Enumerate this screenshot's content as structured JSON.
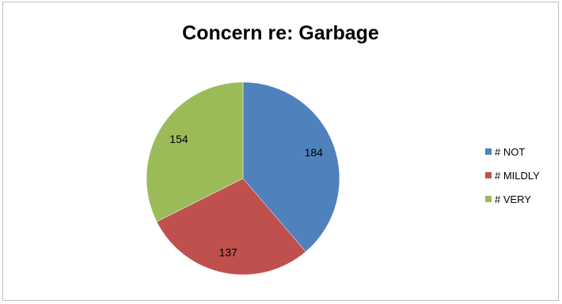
{
  "chart_data": {
    "type": "pie",
    "title": "Concern re: Garbage",
    "legend_position": "right",
    "slices": [
      {
        "label": "# NOT",
        "value": 184,
        "color": "#4f81bd"
      },
      {
        "label": "# MILDLY",
        "value": 137,
        "color": "#c0504d"
      },
      {
        "label": "# VERY",
        "value": 154,
        "color": "#9bbb59"
      }
    ]
  }
}
